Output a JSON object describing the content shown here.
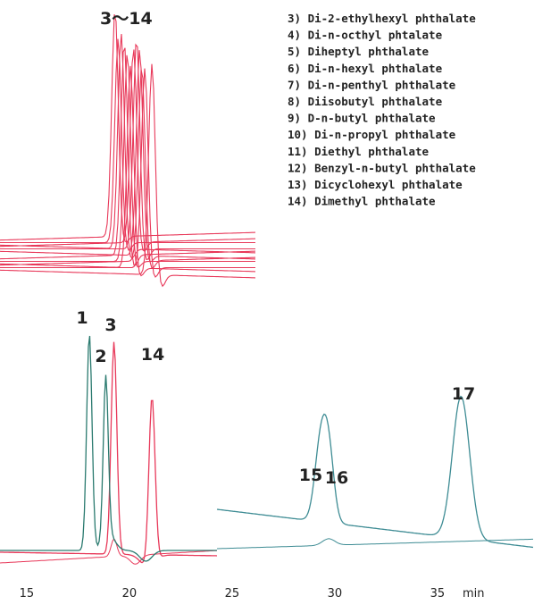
{
  "chart_data": {
    "type": "line",
    "xlabel": "min",
    "xlim": [
      13.7,
      39.7
    ],
    "xticks": [
      {
        "value": 15,
        "label": "15"
      },
      {
        "value": 20,
        "label": "20"
      },
      {
        "value": 25,
        "label": "25"
      },
      {
        "value": 30,
        "label": "30"
      },
      {
        "value": 35,
        "label": "35"
      }
    ],
    "grid": false,
    "colors": {
      "red": "#e8395a",
      "teal": "#3e8c94",
      "green": "#2a7a6f"
    },
    "overlay": {
      "label": "3～14",
      "xlim": [
        13.7,
        26.3
      ],
      "traces": [
        {
          "peak_x": 19.3,
          "height": 0.98
        },
        {
          "peak_x": 19.45,
          "height": 0.88
        },
        {
          "peak_x": 19.6,
          "height": 0.93
        },
        {
          "peak_x": 19.75,
          "height": 0.92
        },
        {
          "peak_x": 19.9,
          "height": 0.9
        },
        {
          "peak_x": 20.05,
          "height": 0.87
        },
        {
          "peak_x": 20.2,
          "height": 0.84
        },
        {
          "peak_x": 20.35,
          "height": 0.91
        },
        {
          "peak_x": 20.5,
          "height": 0.89
        },
        {
          "peak_x": 20.6,
          "height": 0.84
        },
        {
          "peak_x": 20.75,
          "height": 0.86
        },
        {
          "peak_x": 21.1,
          "height": 0.91
        }
      ]
    },
    "legend": [
      "3) Di-2-ethylhexyl phthalate",
      "4) Di-n-octhyl phtalate",
      "5) Diheptyl phthalate",
      "6) Di-n-hexyl phthalate",
      "7) Di-n-penthyl phthalate",
      "8) Diisobutyl phthalate",
      "9) D-n-butyl phthalate",
      "10) Di-n-propyl phthalate",
      "11) Diethyl phthalate",
      "12) Benzyl-n-butyl phthalate",
      "13) Dicyclohexyl phthalate",
      "14) Dimethyl phthalate"
    ],
    "series": [
      {
        "label": "1",
        "x": 18.05,
        "height": 0.99,
        "color": "green"
      },
      {
        "label": "2",
        "x": 18.85,
        "height": 0.74,
        "color": "green"
      },
      {
        "label": "3",
        "x": 19.25,
        "height": 0.97,
        "color": "red"
      },
      {
        "label": "14",
        "x": 21.1,
        "height": 0.77,
        "color": "red"
      },
      {
        "label": "15",
        "x": 29.3,
        "height": 0.34,
        "color": "teal"
      },
      {
        "label": "16",
        "x": 29.7,
        "height": 0.31,
        "color": "teal"
      },
      {
        "label": "17",
        "x": 36.15,
        "height": 0.65,
        "color": "teal"
      }
    ]
  }
}
